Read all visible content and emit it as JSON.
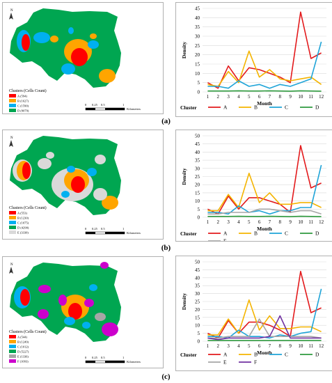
{
  "panels": [
    {
      "label": "(a)",
      "map": {
        "legend_title": "Clusters (Cells Count)",
        "legend": [
          {
            "label": "A (594)",
            "color": "#ff0000"
          },
          {
            "label": "B (1627)",
            "color": "#ffa500"
          },
          {
            "label": "C (1590)",
            "color": "#00b0f0"
          },
          {
            "label": "D (9079)",
            "color": "#00a651"
          }
        ],
        "scale_ticks": [
          "0",
          "0.25",
          "0.5",
          "1"
        ],
        "scale_unit": "Kilometers",
        "north": "N"
      },
      "chart": {
        "ylabel": "Density",
        "xlabel": "Month",
        "legend_title": "Cluster",
        "yticks": [
          "0",
          "5",
          "10",
          "15",
          "20",
          "25",
          "30",
          "35",
          "40",
          "45"
        ]
      }
    },
    {
      "label": "(b)",
      "map": {
        "legend_title": "Clusters (Cells Count)",
        "legend": [
          {
            "label": "A (553)",
            "color": "#ff0000"
          },
          {
            "label": "B (1230)",
            "color": "#ffa500"
          },
          {
            "label": "C (1075)",
            "color": "#00b0f0"
          },
          {
            "label": "D (4290)",
            "color": "#00a651"
          },
          {
            "label": "E (3330)",
            "color": "#d9d9d9"
          }
        ],
        "scale_ticks": [
          "0",
          "0.25",
          "0.5",
          "1"
        ],
        "scale_unit": "Kilometers",
        "north": "N"
      },
      "chart": {
        "ylabel": "Density",
        "xlabel": "Month",
        "legend_title": "Cluster",
        "yticks": [
          "0",
          "5",
          "10",
          "15",
          "20",
          "25",
          "30",
          "35",
          "40",
          "45",
          "50"
        ]
      }
    },
    {
      "label": "(c)",
      "map": {
        "legend_title": "Clusters (Cells Count)",
        "legend": [
          {
            "label": "A (544)",
            "color": "#ff0000"
          },
          {
            "label": "B (1249)",
            "color": "#ffa500"
          },
          {
            "label": "C (1012)",
            "color": "#00b0f0"
          },
          {
            "label": "D (5227)",
            "color": "#00a651"
          },
          {
            "label": "E (1336)",
            "color": "#a6a6a6"
          },
          {
            "label": "F (1093)",
            "color": "#cc00cc"
          }
        ],
        "scale_ticks": [
          "0",
          "0.25",
          "0.5",
          "1"
        ],
        "scale_unit": "Kilometers",
        "north": "N"
      },
      "chart": {
        "ylabel": "Density",
        "xlabel": "Month",
        "legend_title": "Cluster",
        "yticks": [
          "0",
          "5",
          "10",
          "15",
          "20",
          "25",
          "30",
          "35",
          "40",
          "45",
          "50"
        ]
      }
    }
  ],
  "chart_data": [
    {
      "type": "line",
      "xlabel": "Month",
      "ylabel": "Density",
      "legend_title": "Cluster",
      "x": [
        1,
        2,
        3,
        4,
        5,
        6,
        7,
        8,
        9,
        10,
        11,
        12
      ],
      "ylim": [
        0,
        45
      ],
      "series": [
        {
          "name": "A",
          "color": "#e31a1c",
          "values": [
            5,
            2,
            14,
            6,
            13,
            12,
            10,
            8,
            5,
            43,
            18,
            21
          ]
        },
        {
          "name": "B",
          "color": "#f4b400",
          "values": [
            4,
            3,
            11,
            5,
            22,
            8,
            12,
            7,
            6,
            7,
            8,
            4
          ]
        },
        {
          "name": "C",
          "color": "#1fa4d8",
          "values": [
            3,
            3,
            2,
            6,
            3,
            4,
            2,
            4,
            3,
            5,
            7,
            27
          ]
        },
        {
          "name": "D",
          "color": "#2e9a3e",
          "values": [
            0.5,
            0.5,
            0.5,
            0.6,
            0.5,
            0.5,
            0.6,
            0.5,
            0.4,
            0.6,
            0.5,
            0.4
          ]
        }
      ]
    },
    {
      "type": "line",
      "xlabel": "Month",
      "ylabel": "Density",
      "legend_title": "Cluster",
      "x": [
        1,
        2,
        3,
        4,
        5,
        6,
        7,
        8,
        9,
        10,
        11,
        12
      ],
      "ylim": [
        0,
        50
      ],
      "series": [
        {
          "name": "A",
          "color": "#e31a1c",
          "values": [
            5,
            2,
            13,
            5,
            12,
            12,
            10,
            8,
            3,
            44,
            18,
            21
          ]
        },
        {
          "name": "B",
          "color": "#f4b400",
          "values": [
            4,
            4,
            14,
            6,
            27,
            9,
            15,
            8,
            8,
            9,
            9,
            6
          ]
        },
        {
          "name": "C",
          "color": "#1fa4d8",
          "values": [
            3,
            3,
            2,
            7,
            3,
            4,
            2,
            4,
            4,
            6,
            6,
            32
          ]
        },
        {
          "name": "D",
          "color": "#2e9a3e",
          "values": [
            0.5,
            0.5,
            0.5,
            0.6,
            0.5,
            0.5,
            0.6,
            0.5,
            0.4,
            0.6,
            0.5,
            0.4
          ]
        },
        {
          "name": "E",
          "color": "#a6a6a6",
          "values": [
            2,
            2,
            3,
            3,
            3,
            5,
            5,
            4,
            3,
            4,
            4,
            2
          ]
        }
      ]
    },
    {
      "type": "line",
      "xlabel": "Month",
      "ylabel": "Density",
      "legend_title": "Cluster",
      "x": [
        1,
        2,
        3,
        4,
        5,
        6,
        7,
        8,
        9,
        10,
        11,
        12
      ],
      "ylim": [
        0,
        50
      ],
      "series": [
        {
          "name": "A",
          "color": "#e31a1c",
          "values": [
            5,
            2,
            13,
            5,
            12,
            12,
            10,
            7,
            3,
            44,
            18,
            21
          ]
        },
        {
          "name": "B",
          "color": "#f4b400",
          "values": [
            4,
            4,
            14,
            5,
            26,
            7,
            16,
            8,
            8,
            9,
            9,
            6
          ]
        },
        {
          "name": "C",
          "color": "#1fa4d8",
          "values": [
            3,
            3,
            2,
            7,
            3,
            3,
            2,
            4,
            3,
            5,
            6,
            33
          ]
        },
        {
          "name": "D",
          "color": "#2e9a3e",
          "values": [
            0.5,
            0.5,
            0.5,
            0.5,
            0.5,
            0.5,
            0.5,
            0.5,
            0.5,
            0.5,
            0.5,
            0.5
          ]
        },
        {
          "name": "E",
          "color": "#a6a6a6",
          "values": [
            2,
            2,
            3,
            3,
            3,
            14,
            3,
            3,
            3,
            3,
            3,
            2
          ]
        },
        {
          "name": "F",
          "color": "#7030a0",
          "values": [
            2,
            1,
            2,
            2,
            2,
            2,
            3,
            16,
            2,
            2,
            2,
            2
          ]
        }
      ]
    }
  ]
}
